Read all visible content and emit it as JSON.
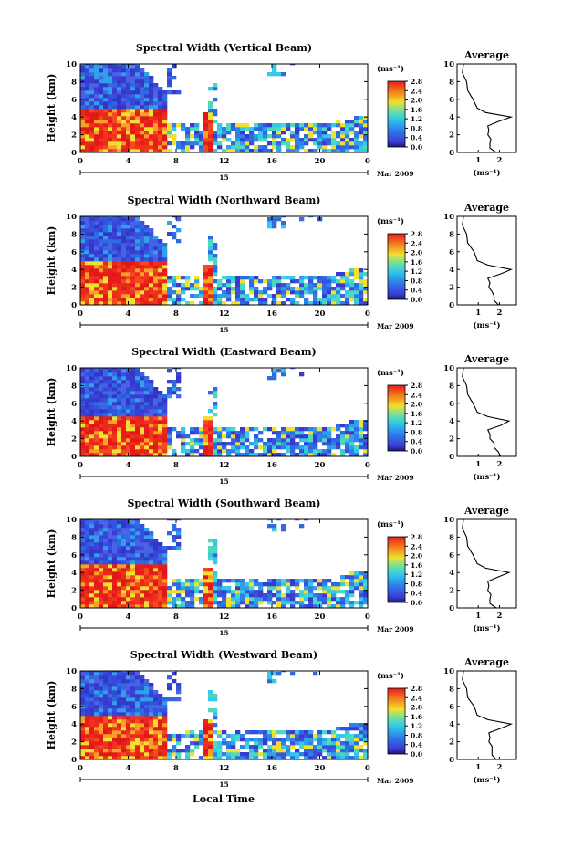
{
  "figure": {
    "xlabel": "Local Time",
    "date_label": "Mar 2009",
    "day_label": "15",
    "colorbar_unit": "(ms⁻¹)",
    "colorbar_ticks": [
      "0.0",
      "0.4",
      "0.8",
      "1.2",
      "1.6",
      "2.0",
      "2.4",
      "2.8"
    ],
    "average_title": "Average",
    "average_xlabel": "(ms⁻¹)",
    "colors": {
      "high": "#e8231c",
      "mid": "#2f6be0",
      "low": "#3d3fd0",
      "cyan": "#36c8e8",
      "yellow": "#f0e030"
    }
  },
  "chart_data": [
    {
      "type": "heatmap",
      "title": "Spectral Width (Vertical Beam)",
      "ylabel": "Height (km)",
      "xlim": [
        0,
        24
      ],
      "ylim": [
        0,
        10
      ],
      "xticks": [
        "0",
        "4",
        "8",
        "12",
        "16",
        "20",
        "0"
      ],
      "yticks": [
        "0",
        "2",
        "4",
        "6",
        "8",
        "10"
      ],
      "colorbar_range": [
        0.0,
        2.8
      ],
      "note_values": "approx. layer top (km) of high width (~2.8) from 0 to 7 h; plume near 10.5 h",
      "low_layer_top_km": 4.6,
      "average_profile": {
        "ylim": [
          0,
          10
        ],
        "xlim": [
          0,
          2.8
        ],
        "xticks": [
          "1",
          "2"
        ],
        "height": [
          0,
          0.5,
          1,
          1.5,
          2,
          2.5,
          3,
          3.5,
          4,
          4.5,
          5,
          6,
          7,
          8,
          9,
          10
        ],
        "value": [
          1.9,
          1.5,
          1.6,
          1.55,
          1.5,
          1.45,
          1.5,
          1.9,
          2.6,
          1.3,
          1.0,
          0.7,
          0.55,
          0.4,
          0.3,
          0.25
        ]
      }
    },
    {
      "type": "heatmap",
      "title": "Spectral Width (Northward Beam)",
      "ylabel": "Height (km)",
      "xlim": [
        0,
        24
      ],
      "ylim": [
        0,
        10
      ],
      "xticks": [
        "0",
        "4",
        "8",
        "12",
        "16",
        "20",
        "0"
      ],
      "yticks": [
        "0",
        "2",
        "4",
        "6",
        "8",
        "10"
      ],
      "colorbar_range": [
        0.0,
        2.8
      ],
      "low_layer_top_km": 4.6,
      "average_profile": {
        "ylim": [
          0,
          10
        ],
        "xlim": [
          0,
          2.8
        ],
        "xticks": [
          "1",
          "2"
        ],
        "height": [
          0,
          0.5,
          1,
          1.5,
          2,
          2.5,
          3,
          3.5,
          4,
          4.5,
          5,
          6,
          7,
          8,
          9,
          10
        ],
        "value": [
          2.0,
          1.7,
          1.8,
          1.6,
          1.55,
          1.5,
          1.5,
          2.0,
          2.6,
          1.4,
          1.0,
          0.75,
          0.55,
          0.4,
          0.3,
          0.25
        ]
      }
    },
    {
      "type": "heatmap",
      "title": "Spectral Width (Eastward Beam)",
      "ylabel": "Height (km)",
      "xlim": [
        0,
        24
      ],
      "ylim": [
        0,
        10
      ],
      "xticks": [
        "0",
        "4",
        "8",
        "12",
        "16",
        "20",
        "0"
      ],
      "yticks": [
        "0",
        "2",
        "4",
        "6",
        "8",
        "10"
      ],
      "colorbar_range": [
        0.0,
        2.8
      ],
      "low_layer_top_km": 4.5,
      "average_profile": {
        "ylim": [
          0,
          10
        ],
        "xlim": [
          0,
          2.8
        ],
        "xticks": [
          "1",
          "2"
        ],
        "height": [
          0,
          0.5,
          1,
          1.5,
          2,
          2.5,
          3,
          3.5,
          4,
          4.5,
          5,
          6,
          7,
          8,
          9,
          10
        ],
        "value": [
          2.1,
          1.9,
          1.8,
          1.7,
          1.6,
          1.5,
          1.5,
          2.0,
          2.5,
          1.4,
          1.0,
          0.7,
          0.55,
          0.4,
          0.3,
          0.25
        ]
      }
    },
    {
      "type": "heatmap",
      "title": "Spectral Width (Southward Beam)",
      "ylabel": "Height (km)",
      "xlim": [
        0,
        24
      ],
      "ylim": [
        0,
        10
      ],
      "xticks": [
        "0",
        "4",
        "8",
        "12",
        "16",
        "20",
        "0"
      ],
      "yticks": [
        "0",
        "2",
        "4",
        "6",
        "8",
        "10"
      ],
      "colorbar_range": [
        0.0,
        2.8
      ],
      "low_layer_top_km": 4.7,
      "average_profile": {
        "ylim": [
          0,
          10
        ],
        "xlim": [
          0,
          2.8
        ],
        "xticks": [
          "1",
          "2"
        ],
        "height": [
          0,
          0.5,
          1,
          1.5,
          2,
          2.5,
          3,
          3.5,
          4,
          4.5,
          5,
          6,
          7,
          8,
          9,
          10
        ],
        "value": [
          1.9,
          1.5,
          1.6,
          1.55,
          1.5,
          1.45,
          1.5,
          1.9,
          2.5,
          1.3,
          1.0,
          0.7,
          0.55,
          0.4,
          0.3,
          0.25
        ]
      }
    },
    {
      "type": "heatmap",
      "title": "Spectral Width (Westward Beam)",
      "ylabel": "Height (km)",
      "xlim": [
        0,
        24
      ],
      "ylim": [
        0,
        10
      ],
      "xticks": [
        "0",
        "4",
        "8",
        "12",
        "16",
        "20",
        "0"
      ],
      "yticks": [
        "0",
        "2",
        "4",
        "6",
        "8",
        "10"
      ],
      "colorbar_range": [
        0.0,
        2.8
      ],
      "low_layer_top_km": 4.6,
      "average_profile": {
        "ylim": [
          0,
          10
        ],
        "xlim": [
          0,
          2.8
        ],
        "xticks": [
          "1",
          "2"
        ],
        "height": [
          0,
          0.5,
          1,
          1.5,
          2,
          2.5,
          3,
          3.5,
          4,
          4.5,
          5,
          6,
          7,
          8,
          9,
          10
        ],
        "value": [
          1.9,
          1.6,
          1.7,
          1.6,
          1.55,
          1.5,
          1.55,
          2.0,
          2.6,
          1.4,
          1.0,
          0.75,
          0.55,
          0.4,
          0.3,
          0.25
        ]
      }
    }
  ]
}
